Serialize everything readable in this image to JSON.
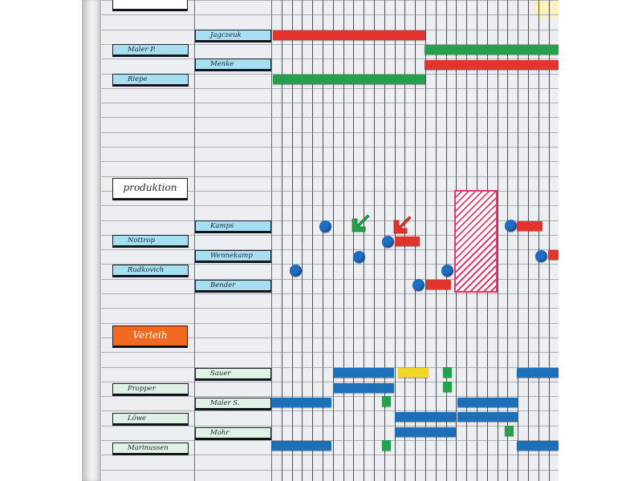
{
  "section_labels": {
    "top": "",
    "produktion": "produktion",
    "verleih": "Verleih"
  },
  "left_labels": {
    "maler_p": "Maler P.",
    "riepe": "Riepe",
    "nottrop": "Nottrop",
    "rudkovich": "Rudkovich",
    "propper": "Propper",
    "loewe": "Löwe",
    "marinussen": "Marinussen"
  },
  "right_labels": {
    "jagczeuk": "Jagczeuk",
    "menke": "Menke",
    "kamps": "Kamps",
    "wennekamp": "Wennekamp",
    "bender": "Bender",
    "sauer": "Sauer",
    "maler_s": "Maler S.",
    "mohr": "Mohr"
  },
  "colors": {
    "red": "#e2332c",
    "green": "#24a14a",
    "blue": "#1d6fb8",
    "yellow": "#f7d42a",
    "magenta_hatch": "#e03a6c",
    "label_blue": "#a6dff2",
    "label_orange": "#f2691f"
  },
  "icons": [
    "green-arrow-icon",
    "red-arrow-icon"
  ]
}
